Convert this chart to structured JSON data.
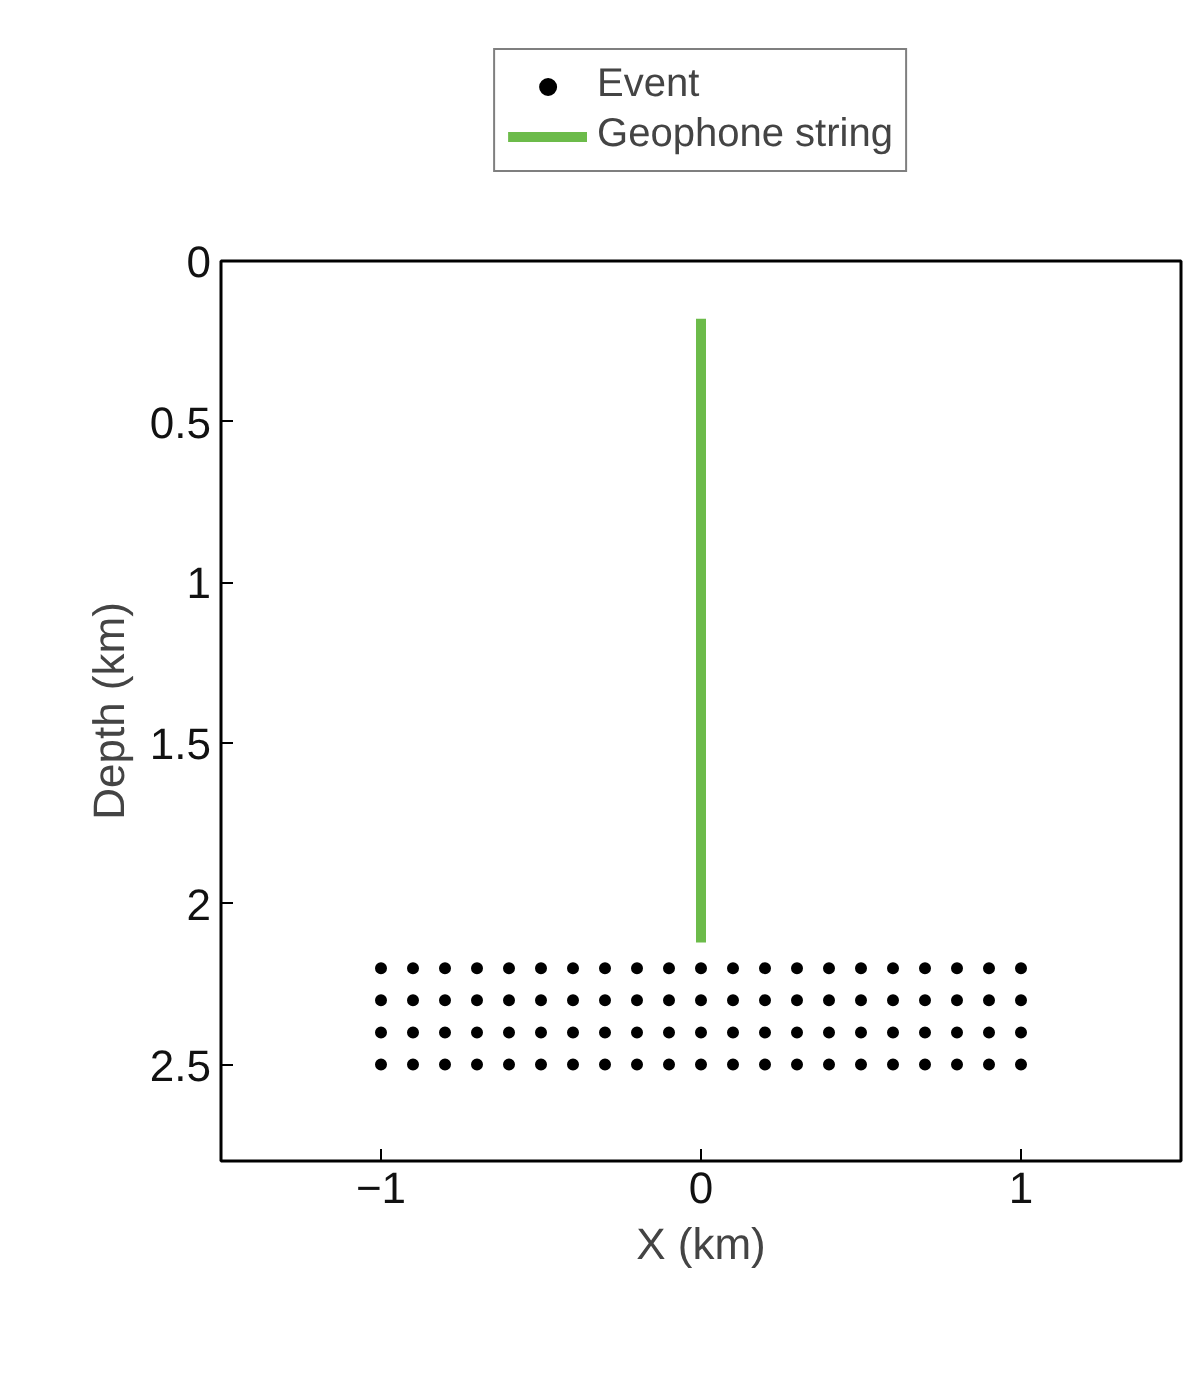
{
  "chart_data": {
    "type": "scatter",
    "xlabel": "X (km)",
    "ylabel": "Depth (km)",
    "xlim": [
      -1.5,
      1.5
    ],
    "ylim": [
      2.8,
      0
    ],
    "xticks": [
      {
        "value": -1,
        "label": "−1"
      },
      0,
      1
    ],
    "yticks": [
      0,
      0.5,
      1,
      1.5,
      2,
      2.5
    ],
    "grid": false,
    "legend": "top",
    "series": [
      {
        "name": "Event",
        "marker": "circle",
        "color": "#000000",
        "x": [
          -1,
          -0.9,
          -0.8,
          -0.7,
          -0.6,
          -0.5,
          -0.4,
          -0.3,
          -0.2,
          -0.1,
          0,
          0.1,
          0.2,
          0.3,
          0.4,
          0.5,
          0.6,
          0.7,
          0.8,
          0.9,
          1,
          -1,
          -0.9,
          -0.8,
          -0.7,
          -0.6,
          -0.5,
          -0.4,
          -0.3,
          -0.2,
          -0.1,
          0,
          0.1,
          0.2,
          0.3,
          0.4,
          0.5,
          0.6,
          0.7,
          0.8,
          0.9,
          1,
          -1,
          -0.9,
          -0.8,
          -0.7,
          -0.6,
          -0.5,
          -0.4,
          -0.3,
          -0.2,
          -0.1,
          0,
          0.1,
          0.2,
          0.3,
          0.4,
          0.5,
          0.6,
          0.7,
          0.8,
          0.9,
          1,
          -1,
          -0.9,
          -0.8,
          -0.7,
          -0.6,
          -0.5,
          -0.4,
          -0.3,
          -0.2,
          -0.1,
          0,
          0.1,
          0.2,
          0.3,
          0.4,
          0.5,
          0.6,
          0.7,
          0.8,
          0.9,
          1
        ],
        "values": [
          2.2,
          2.2,
          2.2,
          2.2,
          2.2,
          2.2,
          2.2,
          2.2,
          2.2,
          2.2,
          2.2,
          2.2,
          2.2,
          2.2,
          2.2,
          2.2,
          2.2,
          2.2,
          2.2,
          2.2,
          2.2,
          2.3,
          2.3,
          2.3,
          2.3,
          2.3,
          2.3,
          2.3,
          2.3,
          2.3,
          2.3,
          2.3,
          2.3,
          2.3,
          2.3,
          2.3,
          2.3,
          2.3,
          2.3,
          2.3,
          2.3,
          2.3,
          2.4,
          2.4,
          2.4,
          2.4,
          2.4,
          2.4,
          2.4,
          2.4,
          2.4,
          2.4,
          2.4,
          2.4,
          2.4,
          2.4,
          2.4,
          2.4,
          2.4,
          2.4,
          2.4,
          2.4,
          2.4,
          2.5,
          2.5,
          2.5,
          2.5,
          2.5,
          2.5,
          2.5,
          2.5,
          2.5,
          2.5,
          2.5,
          2.5,
          2.5,
          2.5,
          2.5,
          2.5,
          2.5,
          2.5,
          2.5,
          2.5,
          2.5
        ]
      },
      {
        "name": "Geophone string",
        "type": "line",
        "color": "#6cbb4a",
        "line_style": "solid",
        "x": [
          0,
          0
        ],
        "values": [
          0.18,
          2.12
        ]
      }
    ]
  }
}
